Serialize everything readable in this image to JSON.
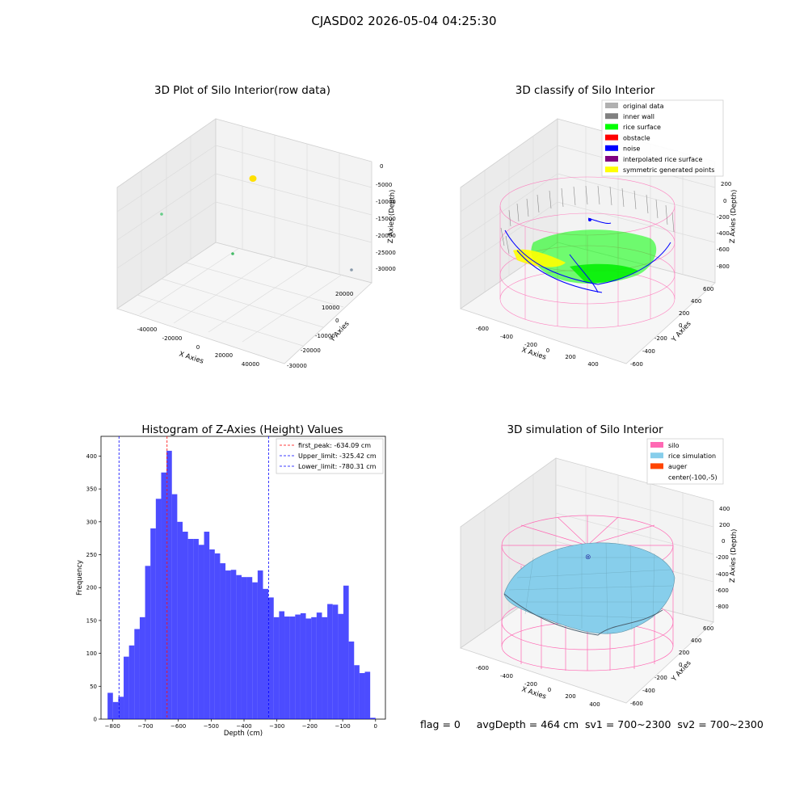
{
  "figure": {
    "title": "CJASD02 2026-05-04 04:25:30",
    "footer": "flag = 0     avgDepth = 464 cm  sv1 = 700~2300  sv2 = 700~2300"
  },
  "chart_data": [
    {
      "type": "scatter",
      "title": "3D Plot of Silo Interior(row data)",
      "xlabel": "X Axies",
      "ylabel": "Y Axies",
      "zlabel": "Z Axies (Depth)",
      "xticks": [
        "-40000",
        "-20000",
        "0",
        "20000",
        "40000"
      ],
      "yticks": [
        "-30000",
        "-20000",
        "-10000",
        "0",
        "10000",
        "20000"
      ],
      "zticks": [
        "0",
        "-5000",
        "-10000",
        "-15000",
        "-20000",
        "-25000",
        "-30000"
      ],
      "points": [
        {
          "color": "#ffe000",
          "desc": "dense cluster"
        },
        {
          "color": "#66cc88"
        },
        {
          "color": "#44bb66"
        },
        {
          "color": "#8899aa"
        }
      ]
    },
    {
      "type": "scatter",
      "title": "3D classify of Silo Interior",
      "xlabel": "X Axies",
      "ylabel": "Y Axies",
      "zlabel": "Z Axies (Depth)",
      "xticks": [
        "-600",
        "-400",
        "-200",
        "0",
        "200",
        "400"
      ],
      "yticks": [
        "-600",
        "-400",
        "-200",
        "0",
        "200",
        "400",
        "600"
      ],
      "zticks": [
        "200",
        "0",
        "-200",
        "-400",
        "-600",
        "-800"
      ],
      "legend": [
        {
          "label": "original data",
          "color": "#b0b0b0"
        },
        {
          "label": "inner wall",
          "color": "#808080"
        },
        {
          "label": "rice surface",
          "color": "#00ff00"
        },
        {
          "label": "obstacle",
          "color": "#ff0000"
        },
        {
          "label": "noise",
          "color": "#0000ff"
        },
        {
          "label": "interpolated rice surface",
          "color": "#800080"
        },
        {
          "label": "symmetric generated points",
          "color": "#ffff00"
        }
      ]
    },
    {
      "type": "bar",
      "title": "Histogram of Z-Axies (Height) Values",
      "xlabel": "Depth (cm)",
      "ylabel": "Frequency",
      "xlim": [
        -835,
        30
      ],
      "ylim": [
        0,
        430
      ],
      "xticks": [
        -800,
        -700,
        -600,
        -500,
        -400,
        -300,
        -200,
        -100,
        0
      ],
      "yticks": [
        0,
        50,
        100,
        150,
        200,
        250,
        300,
        350,
        400
      ],
      "bin_start": -815,
      "bin_width": 16.3,
      "values": [
        40,
        26,
        34,
        95,
        112,
        137,
        155,
        233,
        290,
        335,
        375,
        408,
        342,
        300,
        285,
        274,
        274,
        265,
        285,
        258,
        252,
        237,
        226,
        227,
        219,
        216,
        216,
        208,
        226,
        198,
        185,
        155,
        164,
        156,
        156,
        159,
        161,
        153,
        155,
        162,
        155,
        175,
        174,
        160,
        203,
        118,
        82,
        70,
        72,
        2
      ],
      "color": "#0000ff",
      "lines": [
        {
          "label": "first_peak: -634.09 cm",
          "x": -634.09,
          "color": "#ff0000"
        },
        {
          "label": "Upper_limit: -325.42 cm",
          "x": -325.42,
          "color": "#0000ff"
        },
        {
          "label": "Lower_limit: -780.31 cm",
          "x": -780.31,
          "color": "#0000ff"
        }
      ]
    },
    {
      "type": "area",
      "title": "3D simulation of Silo Interior",
      "xlabel": "X Axies",
      "ylabel": "Y Axies",
      "zlabel": "Z Axies (Depth)",
      "xticks": [
        "-600",
        "-400",
        "-200",
        "0",
        "200",
        "400"
      ],
      "yticks": [
        "-600",
        "-400",
        "-200",
        "0",
        "200",
        "400",
        "600"
      ],
      "zticks": [
        "400",
        "200",
        "0",
        "-200",
        "-400",
        "-600",
        "-800"
      ],
      "legend": [
        {
          "label": "silo",
          "color": "#ff69b4"
        },
        {
          "label": "rice simulation",
          "color": "#87ceeb"
        },
        {
          "label": "auger",
          "color": "#ff4500"
        },
        {
          "label": "center(-100,-5)",
          "color": ""
        }
      ]
    }
  ]
}
